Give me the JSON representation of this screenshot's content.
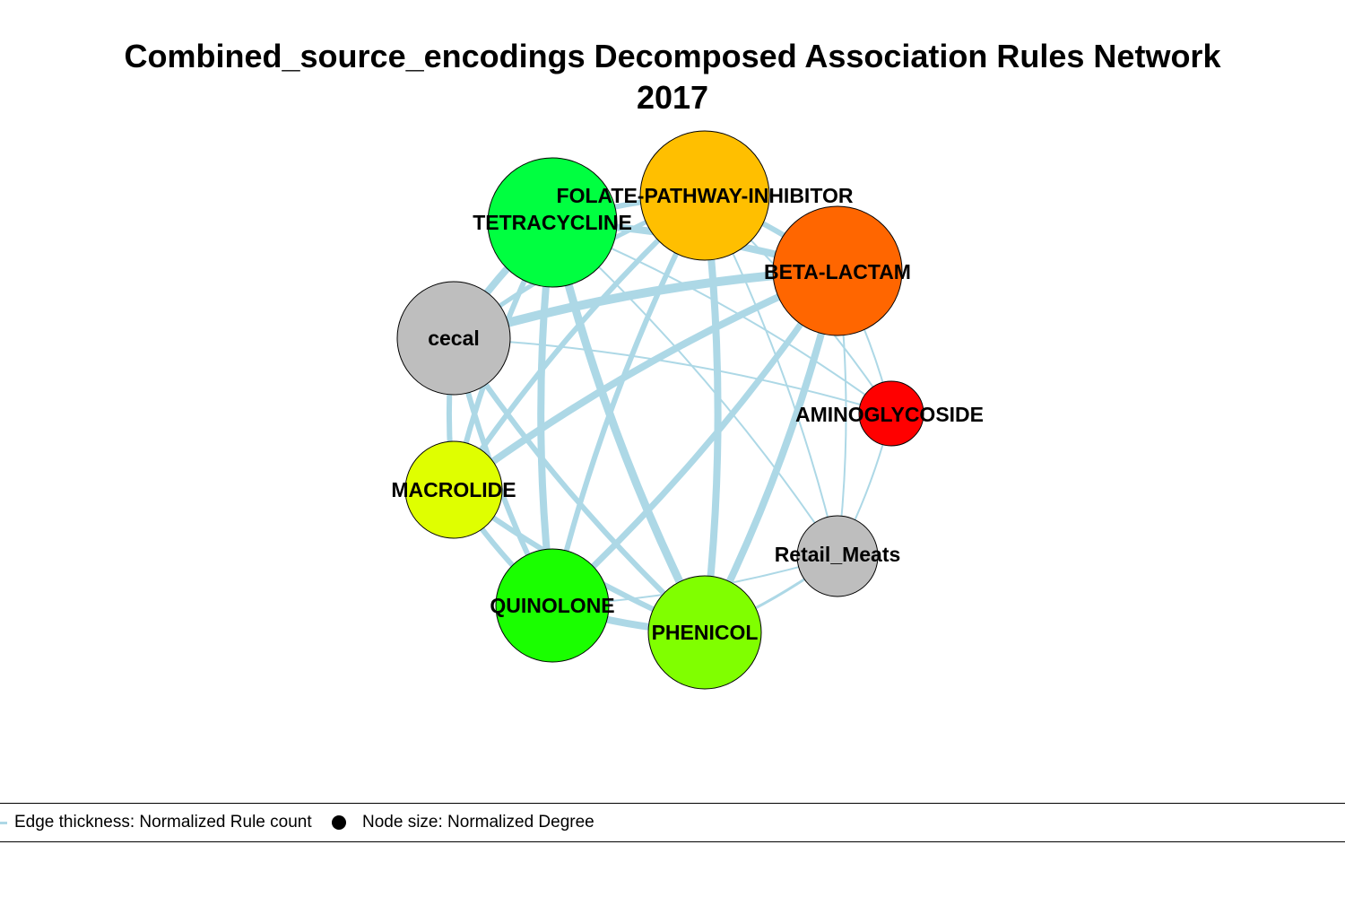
{
  "title": {
    "line1": "Combined_source_encodings Decomposed Association Rules Network",
    "line2": "2017"
  },
  "colors": {
    "edge": "#add8e6",
    "node_border": "#000000",
    "label": "#000000"
  },
  "nodes": [
    {
      "id": "FOLATE-PATHWAY-INHIBITOR",
      "label": "FOLATE-PATHWAY-INHIBITOR",
      "color": "#ffbf00"
    },
    {
      "id": "BETA-LACTAM",
      "label": "BETA-LACTAM",
      "color": "#ff6600"
    },
    {
      "id": "AMINOGLYCOSIDE",
      "label": "AMINOGLYCOSIDE",
      "color": "#ff0000"
    },
    {
      "id": "Retail_Meats",
      "label": "Retail_Meats",
      "color": "#bebebe"
    },
    {
      "id": "PHENICOL",
      "label": "PHENICOL",
      "color": "#80ff00"
    },
    {
      "id": "QUINOLONE",
      "label": "QUINOLONE",
      "color": "#1aff00"
    },
    {
      "id": "MACROLIDE",
      "label": "MACROLIDE",
      "color": "#dfff00"
    },
    {
      "id": "cecal",
      "label": "cecal",
      "color": "#bebebe"
    },
    {
      "id": "TETRACYCLINE",
      "label": "TETRACYCLINE",
      "color": "#00ff40"
    }
  ],
  "edges": [
    {
      "source": "FOLATE-PATHWAY-INHIBITOR",
      "target": "TETRACYCLINE",
      "weight": 6
    },
    {
      "source": "FOLATE-PATHWAY-INHIBITOR",
      "target": "BETA-LACTAM",
      "weight": 6
    },
    {
      "source": "FOLATE-PATHWAY-INHIBITOR",
      "target": "cecal",
      "weight": 5
    },
    {
      "source": "FOLATE-PATHWAY-INHIBITOR",
      "target": "MACROLIDE",
      "weight": 6
    },
    {
      "source": "FOLATE-PATHWAY-INHIBITOR",
      "target": "QUINOLONE",
      "weight": 6
    },
    {
      "source": "FOLATE-PATHWAY-INHIBITOR",
      "target": "PHENICOL",
      "weight": 8
    },
    {
      "source": "FOLATE-PATHWAY-INHIBITOR",
      "target": "AMINOGLYCOSIDE",
      "weight": 2
    },
    {
      "source": "FOLATE-PATHWAY-INHIBITOR",
      "target": "Retail_Meats",
      "weight": 2
    },
    {
      "source": "TETRACYCLINE",
      "target": "BETA-LACTAM",
      "weight": 8
    },
    {
      "source": "TETRACYCLINE",
      "target": "cecal",
      "weight": 8
    },
    {
      "source": "TETRACYCLINE",
      "target": "MACROLIDE",
      "weight": 6
    },
    {
      "source": "TETRACYCLINE",
      "target": "QUINOLONE",
      "weight": 8
    },
    {
      "source": "TETRACYCLINE",
      "target": "PHENICOL",
      "weight": 9
    },
    {
      "source": "TETRACYCLINE",
      "target": "AMINOGLYCOSIDE",
      "weight": 2
    },
    {
      "source": "TETRACYCLINE",
      "target": "Retail_Meats",
      "weight": 2
    },
    {
      "source": "BETA-LACTAM",
      "target": "cecal",
      "weight": 10
    },
    {
      "source": "BETA-LACTAM",
      "target": "MACROLIDE",
      "weight": 8
    },
    {
      "source": "BETA-LACTAM",
      "target": "QUINOLONE",
      "weight": 7
    },
    {
      "source": "BETA-LACTAM",
      "target": "PHENICOL",
      "weight": 8
    },
    {
      "source": "BETA-LACTAM",
      "target": "AMINOGLYCOSIDE",
      "weight": 2
    },
    {
      "source": "BETA-LACTAM",
      "target": "Retail_Meats",
      "weight": 2
    },
    {
      "source": "cecal",
      "target": "MACROLIDE",
      "weight": 6
    },
    {
      "source": "cecal",
      "target": "QUINOLONE",
      "weight": 6
    },
    {
      "source": "cecal",
      "target": "PHENICOL",
      "weight": 6
    },
    {
      "source": "cecal",
      "target": "AMINOGLYCOSIDE",
      "weight": 2
    },
    {
      "source": "MACROLIDE",
      "target": "QUINOLONE",
      "weight": 6
    },
    {
      "source": "MACROLIDE",
      "target": "PHENICOL",
      "weight": 6
    },
    {
      "source": "QUINOLONE",
      "target": "PHENICOL",
      "weight": 8
    },
    {
      "source": "PHENICOL",
      "target": "Retail_Meats",
      "weight": 3
    },
    {
      "source": "QUINOLONE",
      "target": "Retail_Meats",
      "weight": 2
    },
    {
      "source": "AMINOGLYCOSIDE",
      "target": "Retail_Meats",
      "weight": 2
    }
  ],
  "legend": {
    "edge_label": "Edge thickness: Normalized Rule count",
    "node_label": "Node size: Normalized Degree"
  }
}
